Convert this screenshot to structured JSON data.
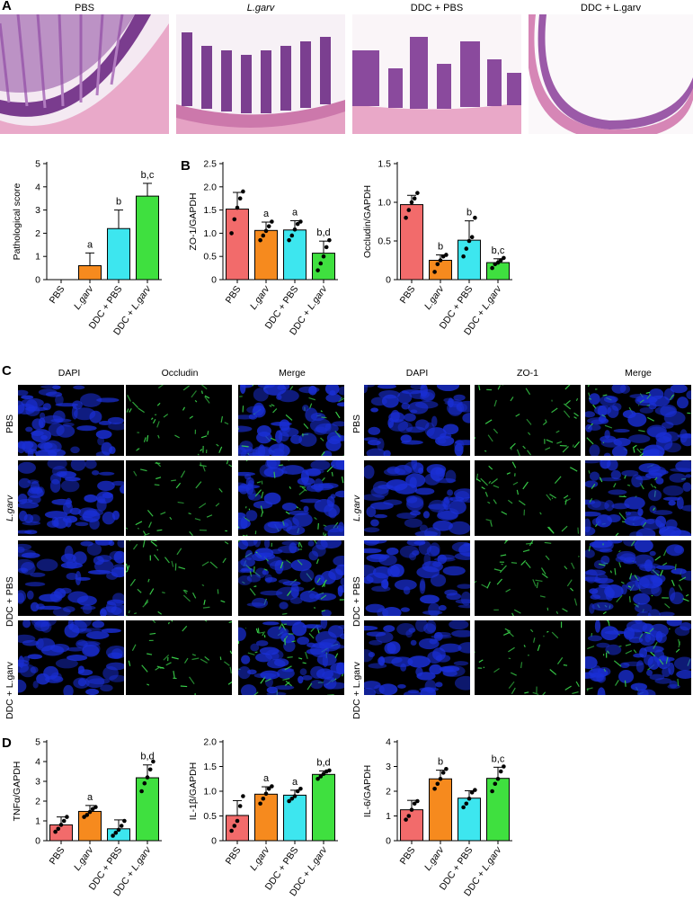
{
  "panels": {
    "A": "A",
    "B": "B",
    "C": "C",
    "D": "D"
  },
  "histology": {
    "titles": [
      "PBS",
      "L.garv",
      "DDC + PBS",
      "DDC + L.garv"
    ]
  },
  "immunofluorescence": {
    "occludin_columns": [
      "DAPI",
      "Occludin",
      "Merge"
    ],
    "zo1_columns": [
      "DAPI",
      "ZO-1",
      "Merge"
    ],
    "rows": [
      "PBS",
      "L.garv",
      "DDC + PBS",
      "DDC + L.garv"
    ]
  },
  "colors": {
    "PBS": "#f26b6b",
    "L.garv": "#f68a1e",
    "DDC + PBS": "#3de6ef",
    "DDC + L.garv": "#3fe03f"
  },
  "chart_data": [
    {
      "id": "pathological-score",
      "type": "bar",
      "categories": [
        "PBS",
        "L.garv",
        "DDC + PBS",
        "DDC + L.garv"
      ],
      "values": [
        0,
        0.6,
        2.2,
        3.6
      ],
      "errors": [
        0,
        0.55,
        0.8,
        0.55
      ],
      "points": [],
      "sig_labels": [
        "",
        "a",
        "b",
        "b,c"
      ],
      "ylabel": "Pathological score",
      "ylim": [
        0,
        5
      ],
      "yticks": [
        0,
        1,
        2,
        3,
        4,
        5
      ],
      "ytick_labels": [
        "0",
        "1",
        "2",
        "3",
        "4",
        "5"
      ]
    },
    {
      "id": "zo1-gapdh",
      "type": "bar",
      "categories": [
        "PBS",
        "L.garv",
        "DDC + PBS",
        "DDC + L.garv"
      ],
      "values": [
        1.52,
        1.06,
        1.07,
        0.57
      ],
      "errors": [
        0.36,
        0.18,
        0.2,
        0.26
      ],
      "points": [
        [
          1.0,
          1.3,
          1.55,
          1.75,
          1.9
        ],
        [
          0.85,
          0.95,
          1.05,
          1.15,
          1.25
        ],
        [
          0.85,
          0.95,
          1.08,
          1.2,
          1.25
        ],
        [
          0.2,
          0.35,
          0.5,
          0.7,
          0.85
        ]
      ],
      "sig_labels": [
        "",
        "a",
        "a",
        "b,d"
      ],
      "ylabel": "ZO-1/GAPDH",
      "ylim": [
        0,
        2.5
      ],
      "yticks": [
        0,
        0.5,
        1.0,
        1.5,
        2.0,
        2.5
      ],
      "ytick_labels": [
        "0",
        "0.5",
        "1.0",
        "1.5",
        "2.0",
        "2.5"
      ]
    },
    {
      "id": "occludin-gapdh",
      "type": "bar",
      "categories": [
        "PBS",
        "L.garv",
        "DDC + PBS",
        "DDC + L.garv"
      ],
      "values": [
        0.97,
        0.25,
        0.51,
        0.22
      ],
      "errors": [
        0.12,
        0.07,
        0.25,
        0.05
      ],
      "points": [
        [
          0.8,
          0.9,
          1.0,
          1.05,
          1.12
        ],
        [
          0.1,
          0.2,
          0.25,
          0.3,
          0.32
        ],
        [
          0.3,
          0.4,
          0.5,
          0.55,
          0.8
        ],
        [
          0.15,
          0.2,
          0.22,
          0.25,
          0.28
        ]
      ],
      "sig_labels": [
        "",
        "b",
        "b",
        "b,c"
      ],
      "ylabel": "Occludin/GAPDH",
      "ylim": [
        0,
        1.5
      ],
      "yticks": [
        0,
        0.5,
        1.0,
        1.5
      ],
      "ytick_labels": [
        "0",
        "0.5",
        "1.0",
        "1.5"
      ]
    },
    {
      "id": "tnfa-gapdh",
      "type": "bar",
      "categories": [
        "PBS",
        "L.garv",
        "DDC + PBS",
        "DDC + L.garv"
      ],
      "values": [
        0.8,
        1.48,
        0.6,
        3.18
      ],
      "errors": [
        0.4,
        0.3,
        0.45,
        0.65
      ],
      "points": [
        [
          0.45,
          0.6,
          0.8,
          1.0,
          1.2
        ],
        [
          1.2,
          1.3,
          1.45,
          1.6,
          1.7
        ],
        [
          0.25,
          0.4,
          0.55,
          0.75,
          1.0
        ],
        [
          2.5,
          2.9,
          3.2,
          3.6,
          4.0
        ]
      ],
      "sig_labels": [
        "",
        "a",
        "",
        "b,d"
      ],
      "ylabel": "TNFα/GAPDH",
      "ylim": [
        0,
        5
      ],
      "yticks": [
        0,
        1,
        2,
        3,
        4,
        5
      ],
      "ytick_labels": [
        "0",
        "1",
        "2",
        "3",
        "4",
        "5"
      ]
    },
    {
      "id": "il1b-gapdh",
      "type": "bar",
      "categories": [
        "PBS",
        "L.garv",
        "DDC + PBS",
        "DDC + L.garv"
      ],
      "values": [
        0.51,
        0.94,
        0.92,
        1.34
      ],
      "errors": [
        0.3,
        0.15,
        0.1,
        0.07
      ],
      "points": [
        [
          0.2,
          0.3,
          0.4,
          0.7,
          0.9
        ],
        [
          0.75,
          0.85,
          0.95,
          1.05,
          1.1
        ],
        [
          0.8,
          0.85,
          0.9,
          1.0,
          1.05
        ],
        [
          1.25,
          1.3,
          1.35,
          1.4,
          1.42
        ]
      ],
      "sig_labels": [
        "",
        "a",
        "a",
        "b,d"
      ],
      "ylabel": "IL-1β/GAPDH",
      "ylim": [
        0,
        2.0
      ],
      "yticks": [
        0,
        0.5,
        1.0,
        1.5,
        2.0
      ],
      "ytick_labels": [
        "0",
        "0.5",
        "1.0",
        "1.5",
        "2.0"
      ]
    },
    {
      "id": "il6-gapdh",
      "type": "bar",
      "categories": [
        "PBS",
        "L.garv",
        "DDC + PBS",
        "DDC + L.garv"
      ],
      "values": [
        1.25,
        2.5,
        1.72,
        2.52
      ],
      "errors": [
        0.38,
        0.35,
        0.3,
        0.45
      ],
      "points": [
        [
          0.85,
          1.0,
          1.25,
          1.5,
          1.6
        ],
        [
          2.1,
          2.3,
          2.5,
          2.75,
          2.9
        ],
        [
          1.35,
          1.5,
          1.7,
          1.95,
          2.05
        ],
        [
          2.0,
          2.3,
          2.5,
          2.8,
          3.0
        ]
      ],
      "sig_labels": [
        "",
        "b",
        "",
        "b,c"
      ],
      "ylabel": "IL-6/GAPDH",
      "ylim": [
        0,
        4
      ],
      "yticks": [
        0,
        1,
        2,
        3,
        4
      ],
      "ytick_labels": [
        "0",
        "1",
        "2",
        "3",
        "4"
      ]
    }
  ]
}
